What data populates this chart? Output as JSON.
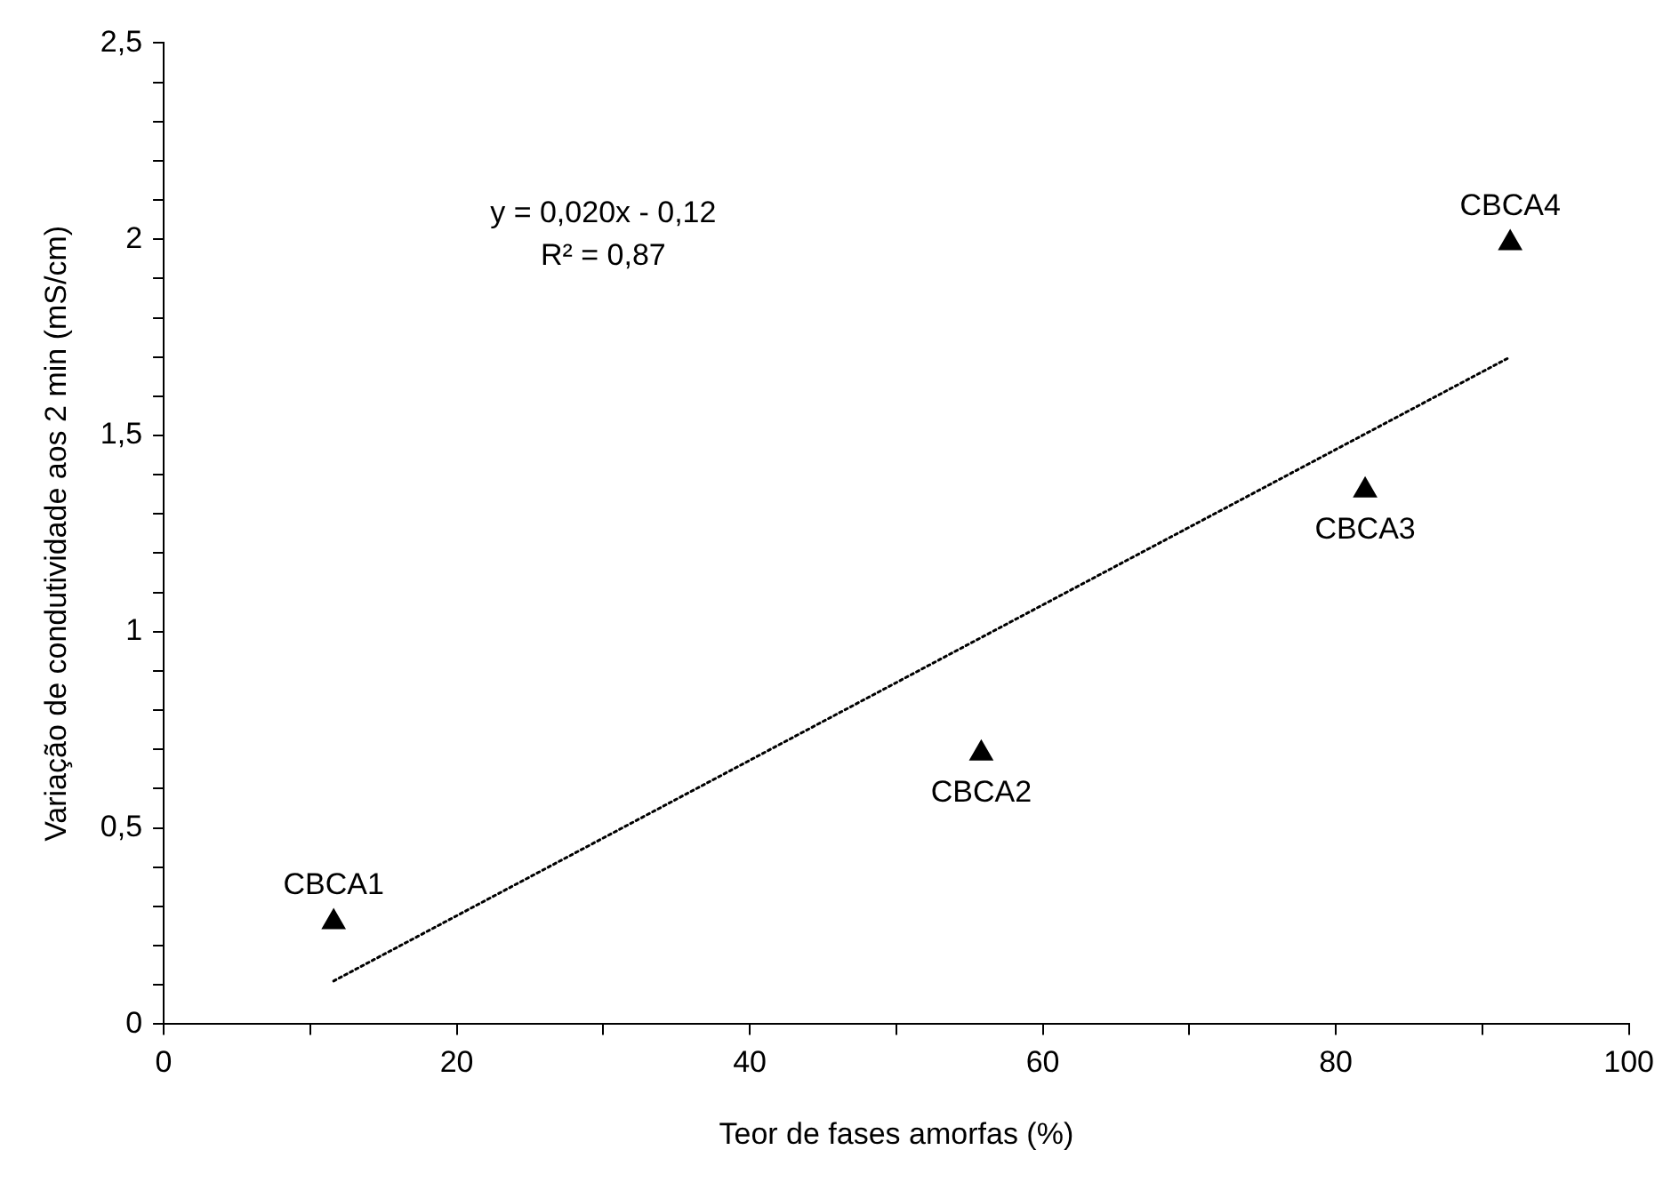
{
  "chart_data": {
    "type": "scatter",
    "xlabel": "Teor de fases amorfas (%)",
    "ylabel": "Variação de condutividade aos 2 min (mS/cm)",
    "xlim": [
      0,
      100
    ],
    "ylim": [
      0,
      2.5
    ],
    "xticks": [
      0,
      {
        "value": 10,
        "label": null
      },
      20,
      {
        "value": 30,
        "label": null
      },
      40,
      {
        "value": 50,
        "label": null
      },
      60,
      {
        "value": 70,
        "label": null
      },
      80,
      {
        "value": 90,
        "label": null
      },
      100
    ],
    "yticks": [
      0,
      {
        "value": 0.1,
        "label": null
      },
      {
        "value": 0.2,
        "label": null
      },
      {
        "value": 0.3,
        "label": null
      },
      {
        "value": 0.4,
        "label": null
      },
      {
        "value": 0.5,
        "label": "0,5"
      },
      {
        "value": 0.6,
        "label": null
      },
      {
        "value": 0.7,
        "label": null
      },
      {
        "value": 0.8,
        "label": null
      },
      {
        "value": 0.9,
        "label": null
      },
      1,
      {
        "value": 1.1,
        "label": null
      },
      {
        "value": 1.2,
        "label": null
      },
      {
        "value": 1.3,
        "label": null
      },
      {
        "value": 1.4,
        "label": null
      },
      {
        "value": 1.5,
        "label": "1,5"
      },
      {
        "value": 1.6,
        "label": null
      },
      {
        "value": 1.7,
        "label": null
      },
      {
        "value": 1.8,
        "label": null
      },
      {
        "value": 1.9,
        "label": null
      },
      2,
      {
        "value": 2.1,
        "label": null
      },
      {
        "value": 2.2,
        "label": null
      },
      {
        "value": 2.3,
        "label": null
      },
      {
        "value": 2.4,
        "label": null
      },
      {
        "value": 2.5,
        "label": "2,5"
      }
    ],
    "grid": false,
    "legend": false,
    "series": [
      {
        "type": "scatter",
        "color": "#000000",
        "marker": "triangle",
        "x": [
          11.6,
          55.8,
          82.0,
          91.9
        ],
        "values": [
          0.26,
          0.69,
          1.36,
          1.99
        ]
      },
      {
        "type": "line",
        "color": "#000000",
        "marker": "none",
        "line_style": "dotted",
        "x": [
          11.6,
          91.9
        ],
        "values": [
          0.11,
          1.7
        ]
      }
    ],
    "annotations": [
      "y = 0,020x - 0,12",
      "R² = 0,87",
      {
        "text": "CBCA1",
        "x": 11.6,
        "y": 0.26
      },
      {
        "text": "CBCA2",
        "x": 55.8,
        "y": 0.69
      },
      {
        "text": "CBCA3",
        "x": 82.0,
        "y": 1.36
      },
      {
        "text": "CBCA4",
        "x": 91.9,
        "y": 1.99
      }
    ]
  }
}
